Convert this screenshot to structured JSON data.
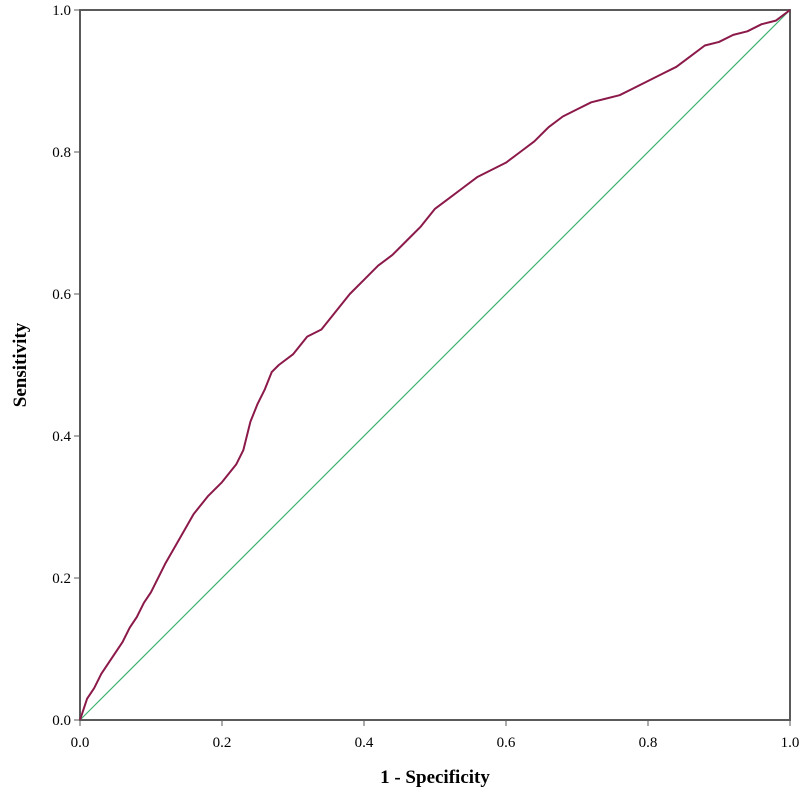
{
  "chart_data": {
    "type": "line",
    "title": "",
    "xlabel": "1 - Specificity",
    "ylabel": "Sensitivity",
    "xlim": [
      0,
      1
    ],
    "ylim": [
      0,
      1
    ],
    "x_ticks": [
      "0.0",
      "0.2",
      "0.4",
      "0.6",
      "0.8",
      "1.0"
    ],
    "y_ticks": [
      "0.0",
      "0.2",
      "0.4",
      "0.6",
      "0.8",
      "1.0"
    ],
    "grid": false,
    "legend": "none",
    "series": [
      {
        "color": "#8b1a4a",
        "x": [
          0.0,
          0.005,
          0.01,
          0.02,
          0.03,
          0.04,
          0.05,
          0.06,
          0.07,
          0.08,
          0.09,
          0.1,
          0.12,
          0.14,
          0.16,
          0.18,
          0.2,
          0.22,
          0.23,
          0.24,
          0.25,
          0.26,
          0.27,
          0.28,
          0.3,
          0.32,
          0.34,
          0.36,
          0.38,
          0.4,
          0.42,
          0.44,
          0.46,
          0.48,
          0.5,
          0.52,
          0.54,
          0.56,
          0.58,
          0.6,
          0.62,
          0.64,
          0.66,
          0.68,
          0.7,
          0.72,
          0.74,
          0.76,
          0.78,
          0.8,
          0.82,
          0.84,
          0.86,
          0.88,
          0.9,
          0.92,
          0.94,
          0.96,
          0.98,
          1.0
        ],
        "y": [
          0.0,
          0.015,
          0.03,
          0.045,
          0.065,
          0.08,
          0.095,
          0.11,
          0.13,
          0.145,
          0.165,
          0.18,
          0.22,
          0.255,
          0.29,
          0.315,
          0.335,
          0.36,
          0.38,
          0.42,
          0.445,
          0.465,
          0.49,
          0.5,
          0.515,
          0.54,
          0.55,
          0.575,
          0.6,
          0.62,
          0.64,
          0.655,
          0.675,
          0.695,
          0.72,
          0.735,
          0.75,
          0.765,
          0.775,
          0.785,
          0.8,
          0.815,
          0.835,
          0.85,
          0.86,
          0.87,
          0.875,
          0.88,
          0.89,
          0.9,
          0.91,
          0.92,
          0.935,
          0.95,
          0.955,
          0.965,
          0.97,
          0.98,
          0.985,
          1.0
        ]
      },
      {
        "color": "#3cb371",
        "x": [
          0.0,
          1.0
        ],
        "y": [
          0.0,
          1.0
        ]
      }
    ]
  }
}
